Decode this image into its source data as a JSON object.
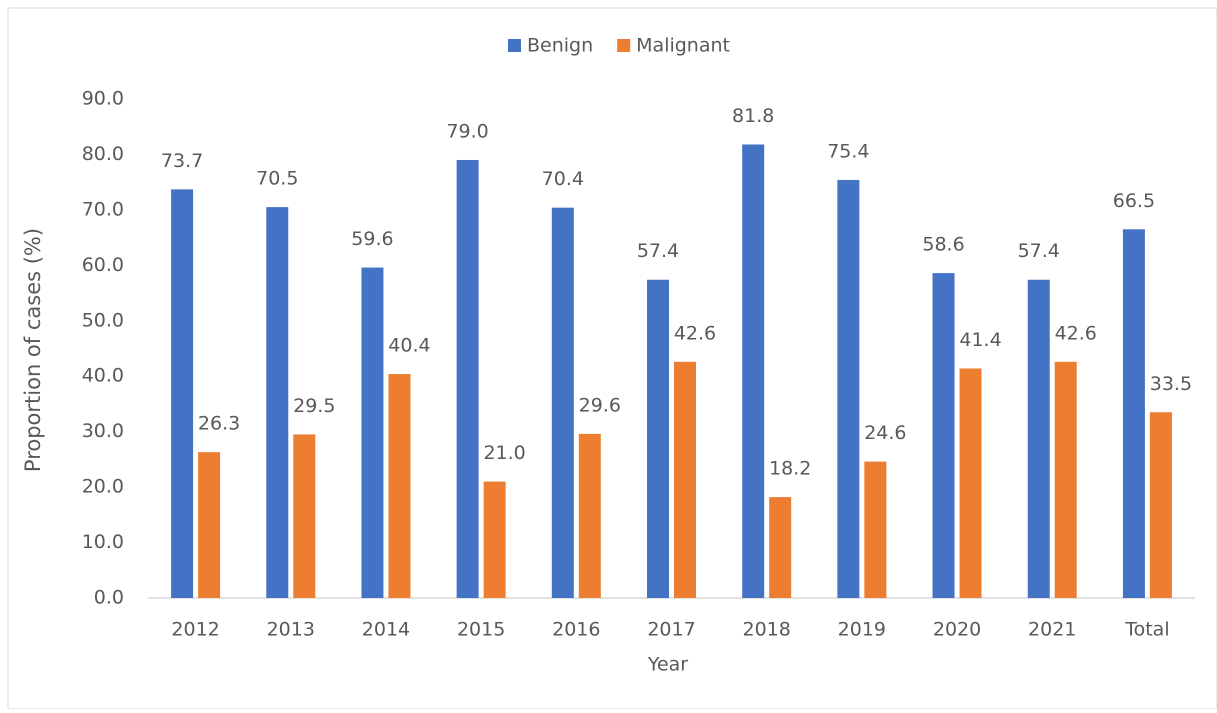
{
  "chart_data": {
    "type": "bar",
    "categories": [
      "2012",
      "2013",
      "2014",
      "2015",
      "2016",
      "2017",
      "2018",
      "2019",
      "2020",
      "2021",
      "Total"
    ],
    "series": [
      {
        "name": "Benign",
        "color": "#4472c4",
        "values": [
          73.7,
          70.5,
          59.6,
          79.0,
          70.4,
          57.4,
          81.8,
          75.4,
          58.6,
          57.4,
          66.5
        ],
        "value_labels": [
          "73.7",
          "70.5",
          "59.6",
          "79.0",
          "70.4",
          "57.4",
          "81.8",
          "75.4",
          "58.6",
          "57.4",
          "66.5"
        ]
      },
      {
        "name": "Malignant",
        "color": "#ed7d31",
        "values": [
          26.3,
          29.5,
          40.4,
          21.0,
          29.6,
          42.6,
          18.2,
          24.6,
          41.4,
          42.6,
          33.5
        ],
        "value_labels": [
          "26.3",
          "29.5",
          "40.4",
          "21.0",
          "29.6",
          "42.6",
          "18.2",
          "24.6",
          "41.4",
          "42.6",
          "33.5"
        ]
      }
    ],
    "xlabel": "Year",
    "ylabel": "Proportion of cases (%)",
    "ylim": [
      0,
      90
    ],
    "yticks": [
      {
        "value": 0,
        "label": "0.0"
      },
      {
        "value": 10,
        "label": "10.0"
      },
      {
        "value": 20,
        "label": "20.0"
      },
      {
        "value": 30,
        "label": "30.0"
      },
      {
        "value": 40,
        "label": "40.0"
      },
      {
        "value": 50,
        "label": "50.0"
      },
      {
        "value": 60,
        "label": "60.0"
      },
      {
        "value": 70,
        "label": "70.0"
      },
      {
        "value": 80,
        "label": "80.0"
      },
      {
        "value": 90,
        "label": "90.0"
      }
    ],
    "grid": false,
    "legend": "top"
  }
}
